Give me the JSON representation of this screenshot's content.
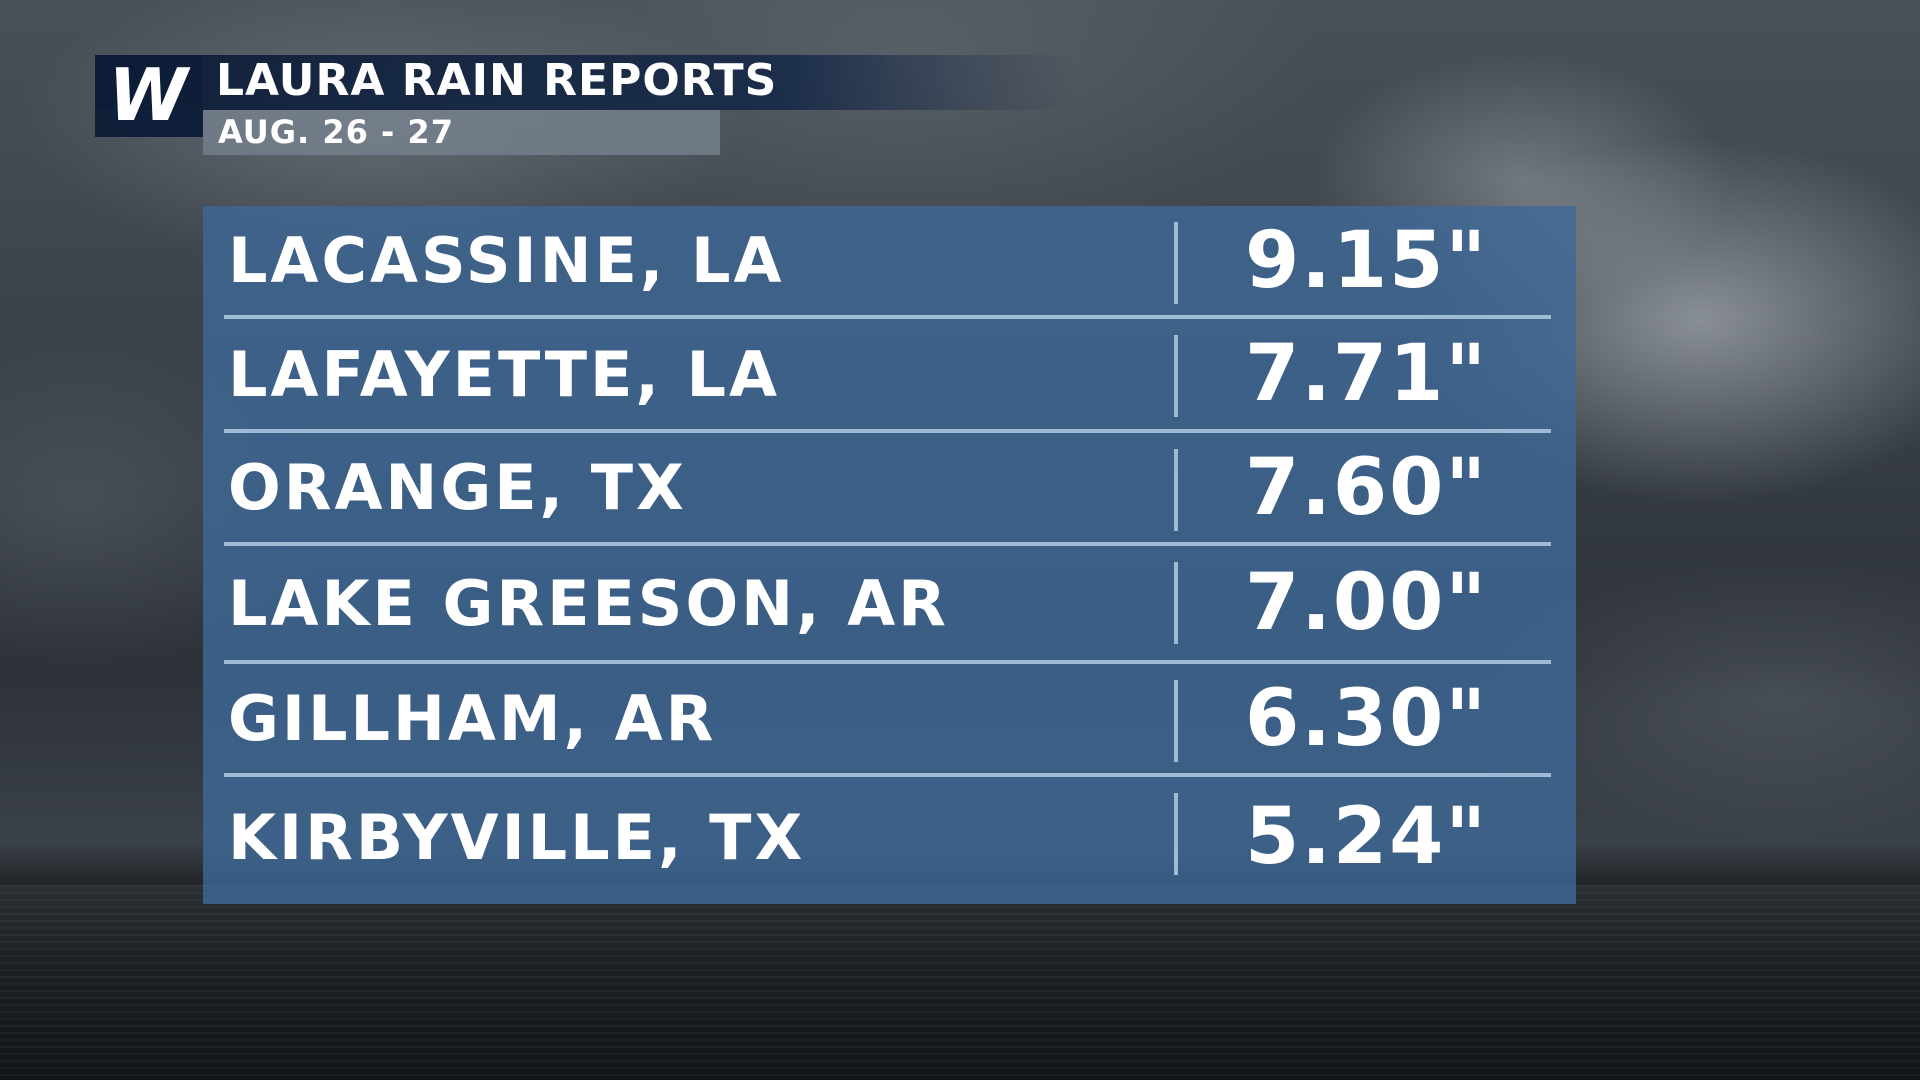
{
  "header": {
    "title": "LAURA RAIN REPORTS",
    "subtitle": "AUG. 26 - 27"
  },
  "logo": {
    "letter": "W"
  },
  "colors": {
    "header_bar": "#0e1e38",
    "subtitle_bar": "#788492",
    "panel": "#3e6896",
    "divider": "#aac4de",
    "text": "#ffffff"
  },
  "reports": [
    {
      "location": "LACASSINE, LA",
      "amount": "9.15\""
    },
    {
      "location": "LAFAYETTE, LA",
      "amount": "7.71\""
    },
    {
      "location": "ORANGE, TX",
      "amount": "7.60\""
    },
    {
      "location": "LAKE GREESON, AR",
      "amount": "7.00\""
    },
    {
      "location": "GILLHAM, AR",
      "amount": "6.30\""
    },
    {
      "location": "KIRBYVILLE, TX",
      "amount": "5.24\""
    }
  ]
}
